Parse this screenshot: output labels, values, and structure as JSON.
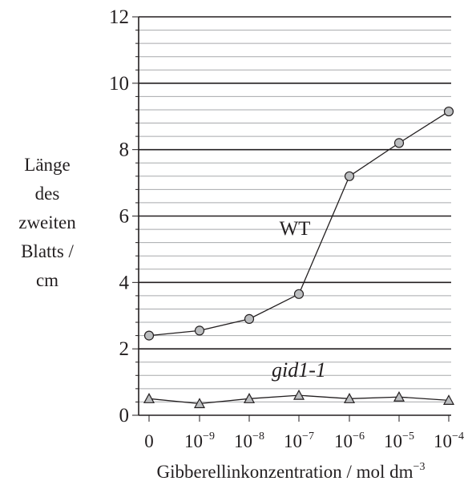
{
  "chart_data": {
    "type": "line",
    "ylabel_lines": [
      "Länge",
      "des",
      "zweiten",
      "Blatts /",
      "cm"
    ],
    "xlabel": "Gibberellinkonzentration / mol dm",
    "xlabel_unit_exp": "−3",
    "categories": [
      {
        "base": "0",
        "exp": ""
      },
      {
        "base": "10",
        "exp": "−9"
      },
      {
        "base": "10",
        "exp": "−8"
      },
      {
        "base": "10",
        "exp": "−7"
      },
      {
        "base": "10",
        "exp": "−6"
      },
      {
        "base": "10",
        "exp": "−5"
      },
      {
        "base": "10",
        "exp": "−4"
      }
    ],
    "ylim": [
      0,
      12
    ],
    "yticks": [
      "0",
      "2",
      "4",
      "6",
      "8",
      "10",
      "12"
    ],
    "grid": true,
    "series": [
      {
        "name": "WT",
        "marker": "circle",
        "values": [
          2.4,
          2.55,
          2.9,
          3.65,
          7.2,
          8.2,
          9.15
        ]
      },
      {
        "name": "gid1-1",
        "marker": "triangle",
        "values": [
          0.5,
          0.35,
          0.5,
          0.6,
          0.5,
          0.55,
          0.45
        ]
      }
    ]
  },
  "colors": {
    "axis": "#231f20",
    "grid_minor": "#a7a9ac",
    "marker_fill": "#bcbec0"
  }
}
